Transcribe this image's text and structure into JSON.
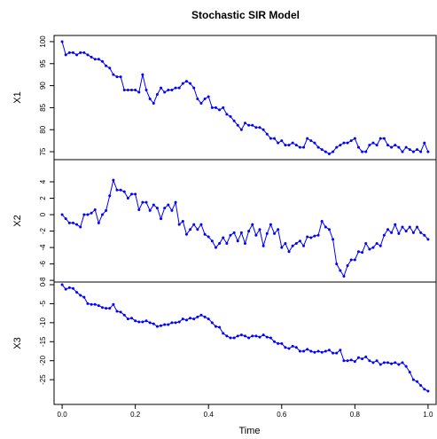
{
  "chart_data": [
    {
      "type": "line",
      "title": "Stochastic SIR Model",
      "ylabel": "X1",
      "color": "#0000ff",
      "x": [
        0,
        0.01,
        0.02,
        0.03,
        0.04,
        0.05,
        0.06,
        0.07,
        0.08,
        0.09,
        0.1,
        0.11,
        0.12,
        0.13,
        0.14,
        0.15,
        0.16,
        0.17,
        0.18,
        0.19,
        0.2,
        0.21,
        0.22,
        0.23,
        0.24,
        0.25,
        0.26,
        0.27,
        0.28,
        0.29,
        0.3,
        0.31,
        0.32,
        0.33,
        0.34,
        0.35,
        0.36,
        0.37,
        0.38,
        0.39,
        0.4,
        0.41,
        0.42,
        0.43,
        0.44,
        0.45,
        0.46,
        0.47,
        0.48,
        0.49,
        0.5,
        0.51,
        0.52,
        0.53,
        0.54,
        0.55,
        0.56,
        0.57,
        0.58,
        0.59,
        0.6,
        0.61,
        0.62,
        0.63,
        0.64,
        0.65,
        0.66,
        0.67,
        0.68,
        0.69,
        0.7,
        0.71,
        0.72,
        0.73,
        0.74,
        0.75,
        0.76,
        0.77,
        0.78,
        0.79,
        0.8,
        0.81,
        0.82,
        0.83,
        0.84,
        0.85,
        0.86,
        0.87,
        0.88,
        0.89,
        0.9,
        0.91,
        0.92,
        0.93,
        0.94,
        0.95,
        0.96,
        0.97,
        0.98,
        0.99,
        1
      ],
      "values": [
        100,
        97,
        97.5,
        97.5,
        97,
        97.5,
        97.5,
        97,
        96.5,
        96,
        96,
        95.5,
        94.5,
        94,
        92.5,
        92,
        92,
        89,
        89,
        89,
        89,
        88.5,
        92.5,
        89,
        87,
        86,
        88,
        89.5,
        88.5,
        89,
        89,
        89.5,
        89.5,
        90.5,
        91,
        90.5,
        89.5,
        87,
        86,
        87,
        87.5,
        85,
        85,
        84.5,
        85,
        83.5,
        83,
        82,
        81,
        80,
        81.5,
        81,
        81,
        80.5,
        80.5,
        80,
        79,
        78,
        78,
        77,
        77.5,
        76.5,
        76.5,
        77,
        76.5,
        76,
        76,
        78,
        77.5,
        77,
        76,
        75.5,
        75,
        74.5,
        75,
        76,
        76.5,
        77,
        77,
        77.5,
        78,
        76,
        75,
        75,
        76.5,
        77,
        76.5,
        78,
        78,
        76.5,
        76,
        76.5,
        76,
        75,
        76,
        75.5,
        75,
        75.5,
        75,
        77,
        75
      ],
      "xlim": [
        -0.022,
        1.022
      ],
      "ylim": [
        73.2,
        101.4
      ],
      "yticks": [
        75,
        80,
        85,
        90,
        95,
        100
      ]
    },
    {
      "type": "line",
      "ylabel": "X2",
      "color": "#0000ff",
      "x": [
        0,
        0.01,
        0.02,
        0.03,
        0.04,
        0.05,
        0.06,
        0.07,
        0.08,
        0.09,
        0.1,
        0.11,
        0.12,
        0.13,
        0.14,
        0.15,
        0.16,
        0.17,
        0.18,
        0.19,
        0.2,
        0.21,
        0.22,
        0.23,
        0.24,
        0.25,
        0.26,
        0.27,
        0.28,
        0.29,
        0.3,
        0.31,
        0.32,
        0.33,
        0.34,
        0.35,
        0.36,
        0.37,
        0.38,
        0.39,
        0.4,
        0.41,
        0.42,
        0.43,
        0.44,
        0.45,
        0.46,
        0.47,
        0.48,
        0.49,
        0.5,
        0.51,
        0.52,
        0.53,
        0.54,
        0.55,
        0.56,
        0.57,
        0.58,
        0.59,
        0.6,
        0.61,
        0.62,
        0.63,
        0.64,
        0.65,
        0.66,
        0.67,
        0.68,
        0.69,
        0.7,
        0.71,
        0.72,
        0.73,
        0.74,
        0.75,
        0.76,
        0.77,
        0.78,
        0.79,
        0.8,
        0.81,
        0.82,
        0.83,
        0.84,
        0.85,
        0.86,
        0.87,
        0.88,
        0.89,
        0.9,
        0.91,
        0.92,
        0.93,
        0.94,
        0.95,
        0.96,
        0.97,
        0.98,
        0.99,
        1
      ],
      "values": [
        0,
        -0.5,
        -1,
        -1,
        -1.2,
        -1.5,
        0,
        0,
        0.2,
        0.6,
        -1,
        0,
        0.5,
        2.3,
        4.2,
        3,
        3,
        2.8,
        2,
        2.5,
        2.5,
        0.6,
        1.5,
        1.5,
        0.5,
        1.2,
        0.8,
        -0.5,
        0.8,
        1.2,
        0.5,
        1.5,
        -1.2,
        -0.8,
        -2.4,
        -1.8,
        -1.2,
        -1.8,
        -1.2,
        -2.4,
        -2.7,
        -3.2,
        -4,
        -3.5,
        -2.8,
        -3.5,
        -2.5,
        -2.2,
        -3.2,
        -2.2,
        -3.5,
        -2,
        -1.2,
        -2.5,
        -1.8,
        -3.8,
        -2.3,
        -1.2,
        -2.3,
        -1.8,
        -4,
        -3.5,
        -4.5,
        -3.8,
        -3.5,
        -3.2,
        -3.8,
        -2.7,
        -2.8,
        -2.6,
        -2.5,
        -0.8,
        -1.5,
        -1.8,
        -3,
        -6,
        -6.8,
        -7.5,
        -6.2,
        -5.5,
        -5.5,
        -4.5,
        -4.6,
        -3.5,
        -4.2,
        -4,
        -3.5,
        -3.8,
        -2.5,
        -1.8,
        -2.2,
        -1.2,
        -2.3,
        -1.5,
        -2,
        -1.5,
        -2.2,
        -1.5,
        -2.2,
        -2.5,
        -3
      ],
      "xlim": [
        -0.022,
        1.022
      ],
      "ylim": [
        -8.2,
        6.7
      ],
      "yticks": [
        -8,
        -6,
        -4,
        -2,
        0,
        2,
        4
      ]
    },
    {
      "type": "line",
      "ylabel": "X3",
      "xlabel": "Time",
      "color": "#0000ff",
      "x": [
        0,
        0.01,
        0.02,
        0.03,
        0.04,
        0.05,
        0.06,
        0.07,
        0.08,
        0.09,
        0.1,
        0.11,
        0.12,
        0.13,
        0.14,
        0.15,
        0.16,
        0.17,
        0.18,
        0.19,
        0.2,
        0.21,
        0.22,
        0.23,
        0.24,
        0.25,
        0.26,
        0.27,
        0.28,
        0.29,
        0.3,
        0.31,
        0.32,
        0.33,
        0.34,
        0.35,
        0.36,
        0.37,
        0.38,
        0.39,
        0.4,
        0.41,
        0.42,
        0.43,
        0.44,
        0.45,
        0.46,
        0.47,
        0.48,
        0.49,
        0.5,
        0.51,
        0.52,
        0.53,
        0.54,
        0.55,
        0.56,
        0.57,
        0.58,
        0.59,
        0.6,
        0.61,
        0.62,
        0.63,
        0.64,
        0.65,
        0.66,
        0.67,
        0.68,
        0.69,
        0.7,
        0.71,
        0.72,
        0.73,
        0.74,
        0.75,
        0.76,
        0.77,
        0.78,
        0.79,
        0.8,
        0.81,
        0.82,
        0.83,
        0.84,
        0.85,
        0.86,
        0.87,
        0.88,
        0.89,
        0.9,
        0.91,
        0.92,
        0.93,
        0.94,
        0.95,
        0.96,
        0.97,
        0.98,
        0.99,
        1
      ],
      "values": [
        0,
        -1.2,
        -0.8,
        -1,
        -2,
        -2.8,
        -3.3,
        -5,
        -5.2,
        -5.2,
        -5.5,
        -6,
        -6.2,
        -6.2,
        -5.2,
        -7,
        -7.2,
        -8,
        -9,
        -8.8,
        -9.5,
        -9.8,
        -9.8,
        -9.5,
        -10,
        -10.3,
        -11,
        -10.8,
        -10.5,
        -10.5,
        -10,
        -10,
        -9.8,
        -9,
        -9.3,
        -8.8,
        -9,
        -8.5,
        -8,
        -8.5,
        -9,
        -10,
        -11,
        -11.2,
        -12.8,
        -13.5,
        -14,
        -14,
        -13.5,
        -13.2,
        -13.5,
        -14,
        -13.5,
        -13.5,
        -13.8,
        -13.2,
        -13.8,
        -14,
        -15,
        -15.5,
        -15.5,
        -16.5,
        -16.8,
        -16.2,
        -16.5,
        -17.5,
        -17.5,
        -17,
        -17.5,
        -17.8,
        -17.5,
        -17.8,
        -17.5,
        -17.2,
        -18,
        -18,
        -17.2,
        -20,
        -20,
        -19.8,
        -20.2,
        -19.2,
        -19.5,
        -19,
        -20,
        -20.5,
        -20,
        -21,
        -20.5,
        -20.5,
        -20.8,
        -20.5,
        -21,
        -20.5,
        -21.5,
        -23,
        -25,
        -25.5,
        -26.5,
        -27.5,
        -28
      ],
      "xlim": [
        -0.022,
        1.022
      ],
      "ylim": [
        -31.5,
        0.7
      ],
      "yticks": [
        -25,
        -20,
        -15,
        -10,
        -5,
        0
      ],
      "xticks": [
        {
          "value": 0,
          "label": "0.0"
        },
        0.2,
        0.4,
        0.6,
        0.8,
        {
          "value": 1,
          "label": "1.0"
        }
      ]
    }
  ]
}
